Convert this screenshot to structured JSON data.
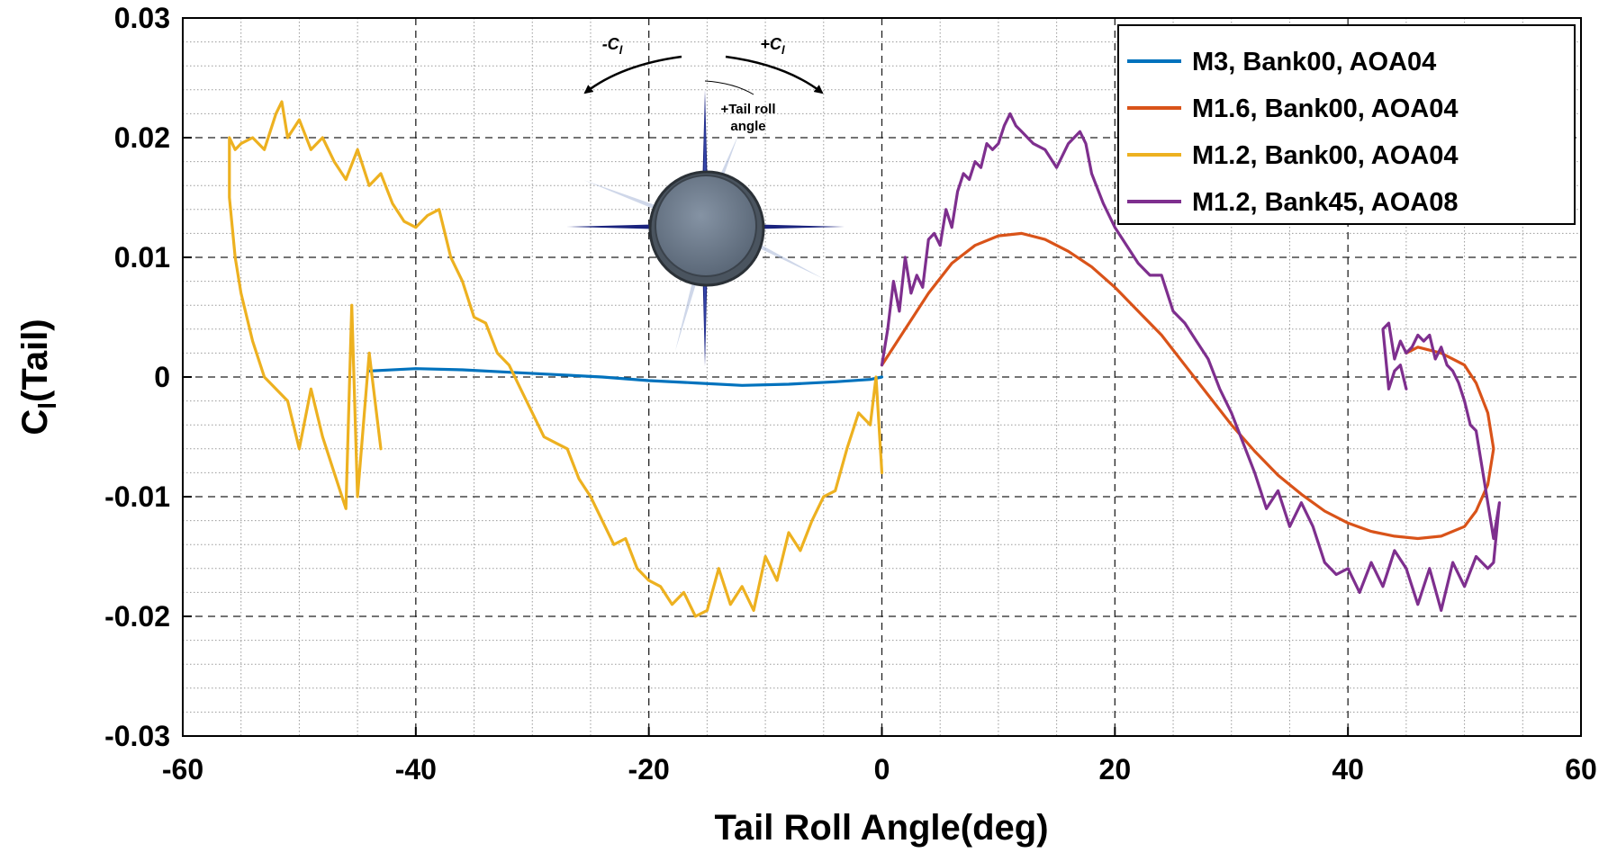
{
  "chart_data": {
    "type": "line",
    "xlabel": "Tail Roll Angle(deg)",
    "ylabel_main": "C",
    "ylabel_sub": "l",
    "ylabel_suffix": "(Tail)",
    "xlim": [
      -60,
      60
    ],
    "ylim": [
      -0.03,
      0.03
    ],
    "x_ticks": [
      "-60",
      "-40",
      "-20",
      "0",
      "20",
      "40",
      "60"
    ],
    "y_ticks": [
      "0.03",
      "0.02",
      "0.01",
      "0",
      "-0.01",
      "-0.02",
      "-0.03"
    ],
    "grid": true,
    "legend_position": "top-right",
    "series": [
      {
        "name": "M3, Bank00, AOA04",
        "color": "#0072BD",
        "x": [
          -44,
          -40,
          -36,
          -32,
          -28,
          -24,
          -20,
          -16,
          -12,
          -8,
          -4,
          -1,
          0
        ],
        "y": [
          0.0005,
          0.0007,
          0.0006,
          0.0004,
          0.0002,
          0.0,
          -0.0003,
          -0.0005,
          -0.0007,
          -0.0006,
          -0.0004,
          -0.0002,
          0.0
        ]
      },
      {
        "name": "M1.6, Bank00, AOA04",
        "color": "#D95319",
        "x": [
          0,
          2,
          4,
          6,
          8,
          10,
          12,
          14,
          16,
          18,
          20,
          22,
          24,
          26,
          28,
          30,
          32,
          34,
          36,
          38,
          40,
          42,
          44,
          46,
          48,
          50,
          51,
          52,
          52.5,
          52,
          51,
          50,
          48,
          46,
          45
        ],
        "y": [
          0.001,
          0.004,
          0.007,
          0.0095,
          0.011,
          0.0118,
          0.012,
          0.0115,
          0.0105,
          0.0092,
          0.0075,
          0.0055,
          0.0035,
          0.001,
          -0.0015,
          -0.004,
          -0.0062,
          -0.0082,
          -0.0098,
          -0.0112,
          -0.0122,
          -0.0129,
          -0.0133,
          -0.0135,
          -0.0133,
          -0.0125,
          -0.0112,
          -0.009,
          -0.006,
          -0.003,
          -0.0005,
          0.001,
          0.002,
          0.0025,
          0.002
        ]
      },
      {
        "name": "M1.2, Bank00, AOA04",
        "color": "#EDB120",
        "x": [
          -43,
          -44,
          -45,
          -45.5,
          -46,
          -47,
          -48,
          -49,
          -50,
          -51,
          -52,
          -53,
          -54,
          -55,
          -55.5,
          -56,
          -56,
          -55.5,
          -55,
          -54,
          -53,
          -52,
          -51.5,
          -51,
          -50,
          -49,
          -48,
          -47,
          -46,
          -45,
          -44,
          -43,
          -42,
          -41,
          -40,
          -39,
          -38,
          -37,
          -36,
          -35,
          -34,
          -33,
          -32,
          -31,
          -30,
          -29,
          -28,
          -27,
          -26,
          -25,
          -24,
          -23,
          -22,
          -21,
          -20,
          -19,
          -18,
          -17,
          -16,
          -15,
          -14,
          -13,
          -12,
          -11,
          -10,
          -9,
          -8,
          -7,
          -6,
          -5,
          -4,
          -3,
          -2,
          -1,
          -0.5,
          0
        ],
        "y": [
          -0.006,
          0.002,
          -0.01,
          0.006,
          -0.011,
          -0.008,
          -0.005,
          -0.001,
          -0.006,
          -0.002,
          -0.001,
          0.0,
          0.003,
          0.007,
          0.01,
          0.015,
          0.02,
          0.019,
          0.0195,
          0.02,
          0.019,
          0.022,
          0.023,
          0.02,
          0.0215,
          0.019,
          0.02,
          0.018,
          0.0165,
          0.019,
          0.016,
          0.017,
          0.0145,
          0.013,
          0.0125,
          0.0135,
          0.014,
          0.01,
          0.008,
          0.005,
          0.0045,
          0.002,
          0.001,
          -0.001,
          -0.003,
          -0.005,
          -0.0055,
          -0.006,
          -0.0085,
          -0.01,
          -0.012,
          -0.014,
          -0.0135,
          -0.016,
          -0.017,
          -0.0175,
          -0.019,
          -0.018,
          -0.02,
          -0.0195,
          -0.016,
          -0.019,
          -0.0175,
          -0.0195,
          -0.015,
          -0.017,
          -0.013,
          -0.0145,
          -0.012,
          -0.01,
          -0.0095,
          -0.006,
          -0.003,
          -0.004,
          0.0,
          -0.008
        ]
      },
      {
        "name": "M1.2, Bank45, AOA08",
        "color": "#7E2F8E",
        "x": [
          0,
          0.5,
          1,
          1.5,
          2,
          2.5,
          3,
          3.5,
          4,
          4.5,
          5,
          5.5,
          6,
          6.5,
          7,
          7.5,
          8,
          8.5,
          9,
          9.5,
          10,
          10.5,
          11,
          11.5,
          12,
          13,
          14,
          15,
          16,
          17,
          17.5,
          18,
          19,
          20,
          21,
          22,
          23,
          24,
          25,
          26,
          27,
          28,
          29,
          30,
          31,
          32,
          33,
          34,
          35,
          36,
          37,
          38,
          39,
          40,
          41,
          42,
          43,
          44,
          45,
          46,
          47,
          48,
          49,
          50,
          51,
          52,
          52.5,
          53,
          52.5,
          52,
          51.5,
          51,
          50.5,
          50,
          49.5,
          49,
          48.5,
          48,
          47.5,
          47,
          46.5,
          46,
          45.5,
          45,
          44.5,
          44,
          43.5,
          43,
          43.5,
          44,
          44.5,
          45
        ],
        "y": [
          0.001,
          0.004,
          0.008,
          0.0055,
          0.01,
          0.007,
          0.0085,
          0.0075,
          0.0115,
          0.012,
          0.011,
          0.014,
          0.0125,
          0.0155,
          0.017,
          0.0165,
          0.018,
          0.0175,
          0.0195,
          0.019,
          0.0195,
          0.021,
          0.022,
          0.021,
          0.0205,
          0.0195,
          0.019,
          0.0175,
          0.0195,
          0.0205,
          0.0195,
          0.017,
          0.0145,
          0.0125,
          0.011,
          0.0095,
          0.0085,
          0.0085,
          0.0055,
          0.0045,
          0.003,
          0.0015,
          -0.001,
          -0.003,
          -0.0055,
          -0.008,
          -0.011,
          -0.0095,
          -0.0125,
          -0.0105,
          -0.0125,
          -0.0155,
          -0.0165,
          -0.016,
          -0.018,
          -0.0155,
          -0.0175,
          -0.0145,
          -0.016,
          -0.019,
          -0.016,
          -0.0195,
          -0.0155,
          -0.0175,
          -0.015,
          -0.016,
          -0.0155,
          -0.0105,
          -0.0135,
          -0.0105,
          -0.0075,
          -0.0045,
          -0.004,
          -0.002,
          -0.0005,
          0.0005,
          0.001,
          0.0025,
          0.0015,
          0.0035,
          0.003,
          0.0035,
          0.0025,
          0.002,
          0.003,
          0.0015,
          0.0045,
          0.004,
          -0.001,
          0.0005,
          0.001,
          -0.001
        ]
      }
    ]
  },
  "inset": {
    "minus_label_main": "-C",
    "minus_label_sub": "l",
    "plus_label_main": "+C",
    "plus_label_sub": "l",
    "roll_label_line1": "+Tail roll",
    "roll_label_line2": "angle"
  }
}
